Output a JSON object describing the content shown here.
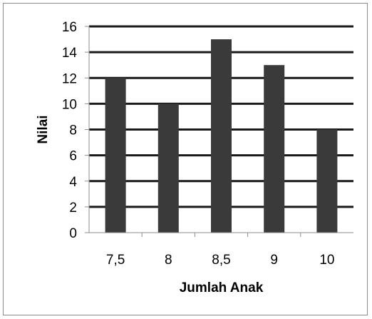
{
  "chart_data": {
    "type": "bar",
    "categories": [
      "7,5",
      "8",
      "8,5",
      "9",
      "10"
    ],
    "values": [
      12,
      10,
      15,
      13,
      8
    ],
    "xlabel": "Jumlah Anak",
    "ylabel": "Nilai",
    "ylim": [
      0,
      16
    ],
    "yticks": [
      "0",
      "2",
      "4",
      "6",
      "8",
      "10",
      "12",
      "14",
      "16"
    ],
    "grid": true,
    "legend": "none",
    "colors": {
      "bar": "#3a3a3a",
      "grid": "#1a1a1a",
      "axis": "#8c8c8c"
    }
  }
}
